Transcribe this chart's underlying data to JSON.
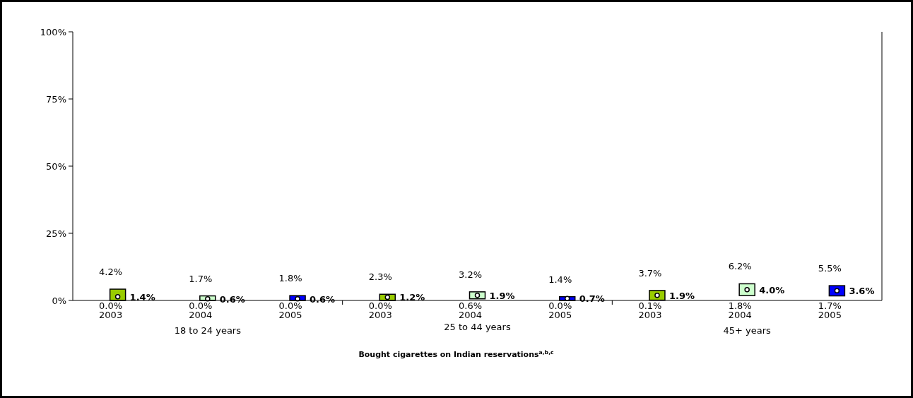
{
  "chart_data": {
    "type": "bar",
    "xlabel": "Bought cigarettes on Indian reservations$^{a,b,c}$",
    "categories": [
      "2003",
      "2004",
      "2005",
      "2003",
      "2004",
      "2005",
      "2003",
      "2004",
      "2005"
    ],
    "annotations": [
      "18 to 24 years",
      "25 to 44 years",
      "45+ years",
      "0.0%",
      "0.0%",
      "0.0%",
      "0.0%",
      "0.6%",
      "0.0%",
      "0.1%",
      "1.8%",
      "1.7%"
    ],
    "series": [
      {
        "colors": [
          "#99cc00",
          "#ccffcc",
          "#0000ff",
          "#99cc00",
          "#ccffcc",
          "#0000ff",
          "#99cc00",
          "#ccffcc",
          "#0000ff"
        ],
        "base": [
          0,
          0,
          0,
          0,
          0.6,
          0,
          0.1,
          1.8,
          1.7
        ],
        "values": [
          4.2,
          1.7,
          1.8,
          2.3,
          2.6,
          1.4,
          3.6,
          4.4,
          3.8
        ],
        "value_labels": [
          "4.2%",
          "1.7%",
          "1.8%",
          "2.3%",
          "3.2%",
          "1.4%",
          "3.7%",
          "6.2%",
          "5.5%"
        ]
      },
      {
        "type": "scatter",
        "color": "#ffffff",
        "marker": "circle",
        "values": [
          1.4,
          0.6,
          0.6,
          1.2,
          1.9,
          0.7,
          1.9,
          4.0,
          3.6
        ],
        "value_labels": [
          "1.4%",
          "0.6%",
          "0.6%",
          "1.2%",
          "1.9%",
          "0.7%",
          "1.9%",
          "4.0%",
          "3.6%"
        ]
      }
    ],
    "ylim": [
      0,
      100
    ],
    "yticks": [
      {
        "value": 0,
        "label": "0%"
      },
      {
        "value": 25,
        "label": "25%"
      },
      {
        "value": 50,
        "label": "50%"
      },
      {
        "value": 75,
        "label": "75%"
      },
      {
        "value": 100,
        "label": "100%"
      }
    ],
    "grid": false
  }
}
